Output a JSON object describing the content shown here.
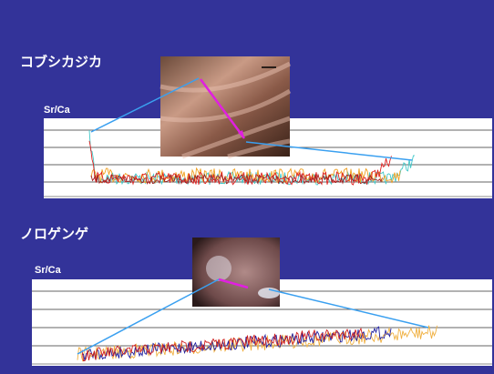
{
  "slide": {
    "sections": [
      {
        "title": "コブシカジカ",
        "y_label": "Sr/Ca"
      },
      {
        "title": "ノロゲンゲ",
        "y_label": "Sr/Ca"
      }
    ]
  }
}
